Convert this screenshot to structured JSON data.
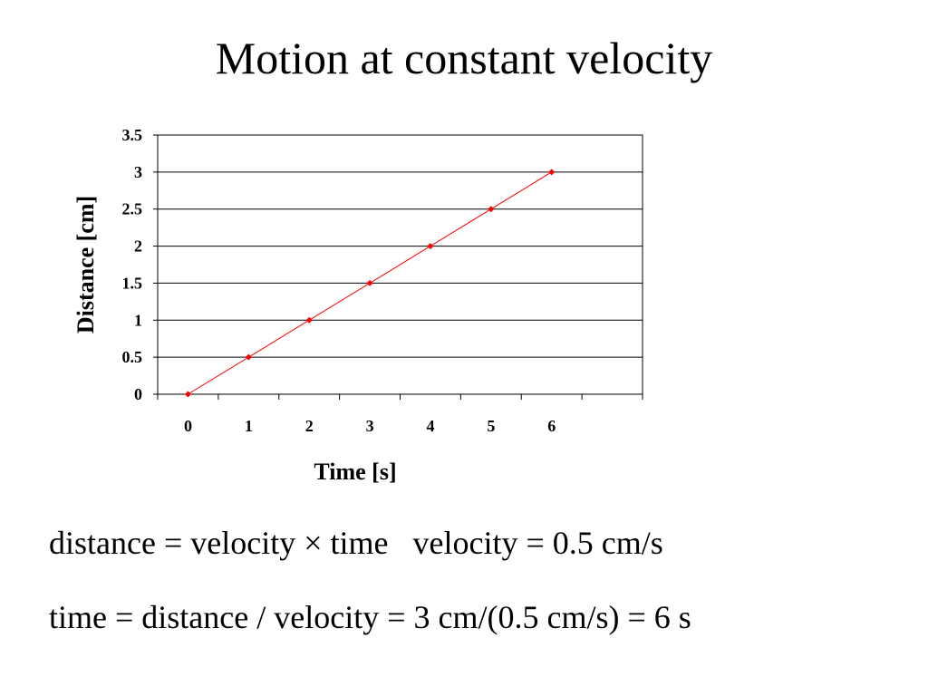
{
  "slide": {
    "title": "Motion at constant velocity",
    "equation_1": "distance = velocity × time",
    "velocity_note": "velocity = 0.5 cm/s",
    "equation_2": "time = distance / velocity = 3 cm/(0.5 cm/s) = 6 s"
  },
  "chart_data": {
    "type": "line",
    "x": [
      0,
      1,
      2,
      3,
      4,
      5,
      6
    ],
    "series": [
      {
        "values": [
          0,
          0.5,
          1,
          1.5,
          2,
          2.5,
          3
        ],
        "color": "#ff0000",
        "marker": "diamond"
      }
    ],
    "xlabel": "Time [s]",
    "ylabel": "Distance [cm]",
    "xlim": [
      -0.5,
      7.5
    ],
    "ylim": [
      0,
      3.5
    ],
    "x_ticks": [
      0,
      1,
      2,
      3,
      4,
      5,
      6
    ],
    "y_ticks": [
      0,
      0.5,
      1,
      1.5,
      2,
      2.5,
      3,
      3.5
    ],
    "y_tick_labels": [
      "0",
      "0.5",
      "1",
      "1.5",
      "2",
      "2.5",
      "3",
      "3.5"
    ],
    "grid": "horizontal",
    "legend": "none"
  }
}
